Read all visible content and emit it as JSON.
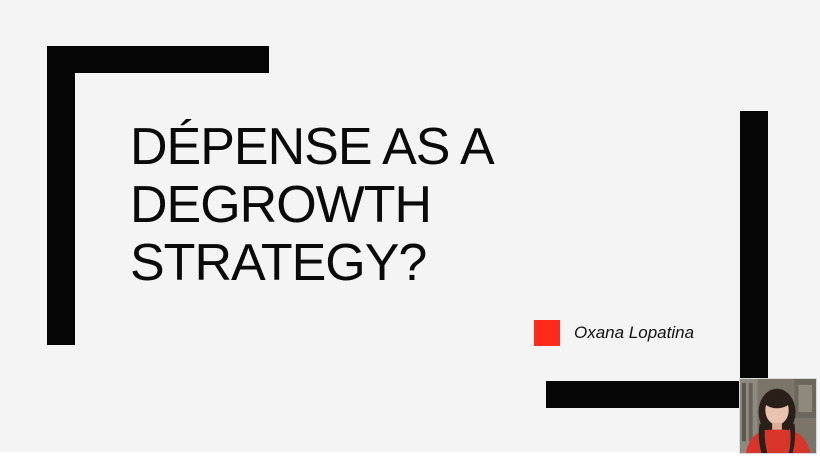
{
  "slide": {
    "title_lines": [
      "DÉPENSE AS A",
      "DEGROWTH",
      "STRATEGY?"
    ],
    "author": "Oxana Lopatina",
    "accent_color": "#ff2a1a",
    "frame_color": "#050505",
    "background_color": "#f4f4f4"
  },
  "webcam": {
    "icon": "presenter-video-feed"
  }
}
